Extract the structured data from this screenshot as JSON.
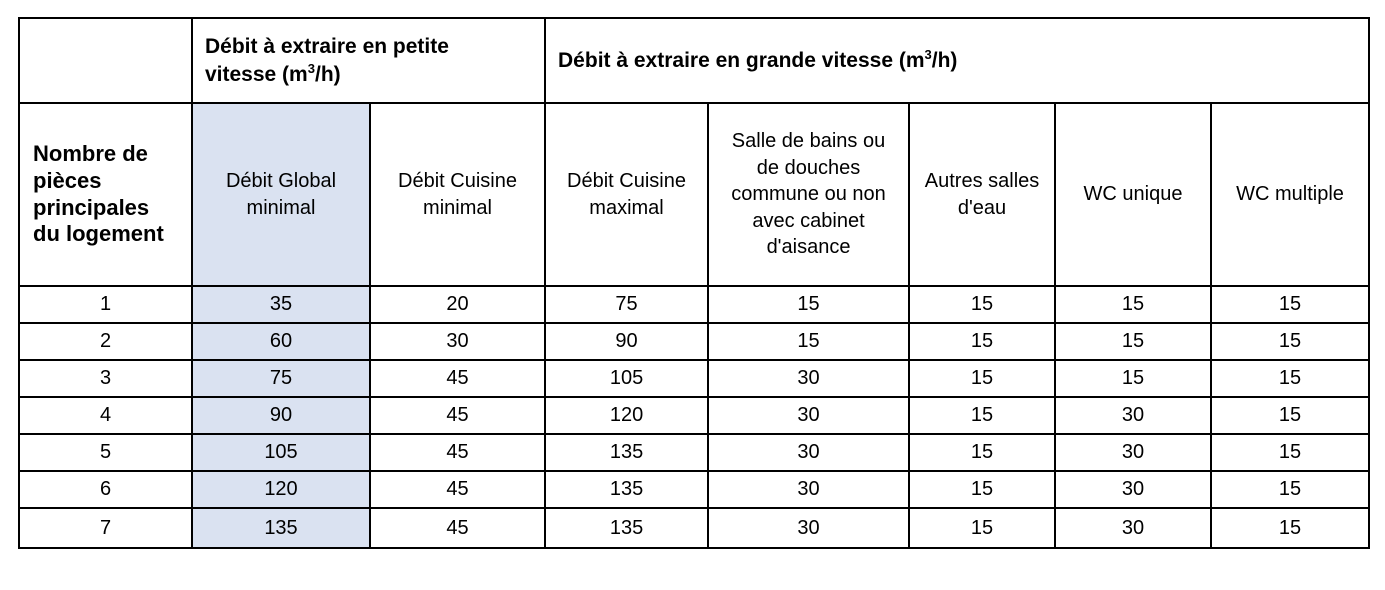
{
  "colors": {
    "highlight": "#dae2f1",
    "border": "#000000",
    "text": "#000000",
    "background": "#ffffff"
  },
  "table": {
    "group_headers": {
      "petite": {
        "line1": "Débit à extraire en petite",
        "line2": "vitesse (m",
        "sup": "3",
        "after_sup": "/h)"
      },
      "grande": {
        "line1": "Débit à extraire en grande vitesse (m",
        "sup": "3",
        "after_sup": "/h)"
      }
    },
    "row_header": "Nombre de\npièces\nprincipales\ndu logement",
    "column_headers": [
      "Débit Global\nminimal",
      "Débit Cuisine\nminimal",
      "Débit Cuisine\nmaximal",
      "Salle de bains ou\nde douches\ncommune ou non\navec cabinet\nd'aisance",
      "Autres salles\nd'eau",
      "WC unique",
      "WC multiple"
    ],
    "rows": [
      {
        "pieces": "1",
        "values": [
          "35",
          "20",
          "75",
          "15",
          "15",
          "15",
          "15"
        ]
      },
      {
        "pieces": "2",
        "values": [
          "60",
          "30",
          "90",
          "15",
          "15",
          "15",
          "15"
        ]
      },
      {
        "pieces": "3",
        "values": [
          "75",
          "45",
          "105",
          "30",
          "15",
          "15",
          "15"
        ]
      },
      {
        "pieces": "4",
        "values": [
          "90",
          "45",
          "120",
          "30",
          "15",
          "30",
          "15"
        ]
      },
      {
        "pieces": "5",
        "values": [
          "105",
          "45",
          "135",
          "30",
          "15",
          "30",
          "15"
        ]
      },
      {
        "pieces": "6",
        "values": [
          "120",
          "45",
          "135",
          "30",
          "15",
          "30",
          "15"
        ]
      },
      {
        "pieces": "7",
        "values": [
          "135",
          "45",
          "135",
          "30",
          "15",
          "30",
          "15"
        ]
      }
    ]
  }
}
